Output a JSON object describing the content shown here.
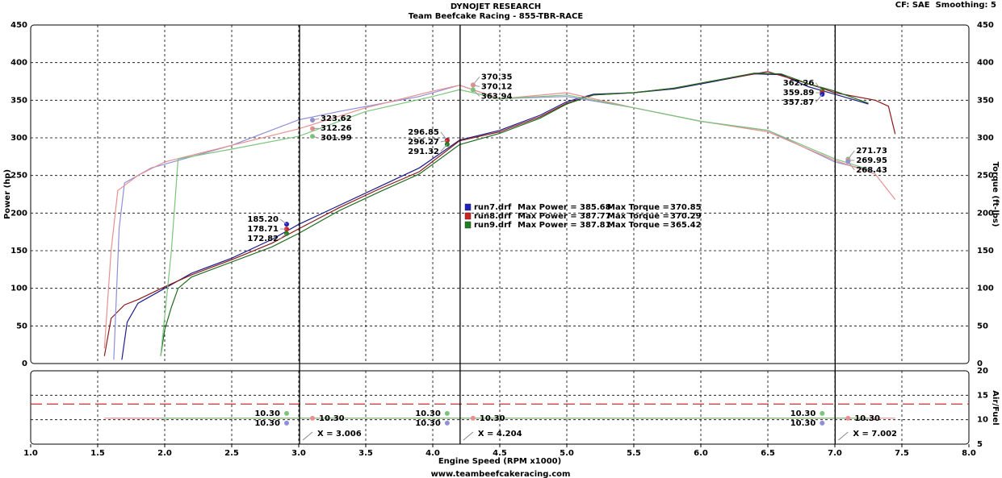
{
  "header": {
    "title": "DYNOJET RESEARCH",
    "subtitle": "Team Beefcake Racing - 855-TBR-RACE",
    "settings": "CF: SAE  Smoothing: 5"
  },
  "footer": "www.teambeefcakeracing.com",
  "chart_data": [
    {
      "type": "line",
      "xlabel": "Engine Speed (RPM x1000)",
      "ylabel": "Power (hp)",
      "y2label": "Torque (ft-lbs)",
      "xlim": [
        1,
        8
      ],
      "xticks": [
        {
          "value": 1,
          "label": "1.0"
        },
        {
          "value": 1.5,
          "label": "1.5"
        },
        {
          "value": 2,
          "label": "2.0"
        },
        {
          "value": 2.5,
          "label": "2.5"
        },
        {
          "value": 3,
          "label": "3.0"
        },
        {
          "value": 3.5,
          "label": "3.5"
        },
        {
          "value": 4,
          "label": "4.0"
        },
        {
          "value": 4.5,
          "label": "4.5"
        },
        {
          "value": 5,
          "label": "5.0"
        },
        {
          "value": 5.5,
          "label": "5.5"
        },
        {
          "value": 6,
          "label": "6.0"
        },
        {
          "value": 6.5,
          "label": "6.5"
        },
        {
          "value": 7,
          "label": "7.0"
        },
        {
          "value": 7.5,
          "label": "7.5"
        },
        {
          "value": 8,
          "label": "8.0"
        }
      ],
      "ylim": [
        0,
        450
      ],
      "yticks": [
        0,
        50,
        100,
        150,
        200,
        250,
        300,
        350,
        400,
        450
      ],
      "y2lim": [
        0,
        450
      ],
      "y2ticks": [
        0,
        50,
        100,
        150,
        200,
        250,
        300,
        350,
        400,
        450
      ],
      "grid": true,
      "series": [
        {
          "color": "#1c1c8c",
          "axis": "y",
          "x": [
            1.68,
            1.72,
            1.8,
            2.0,
            2.2,
            2.5,
            2.8,
            3.0,
            3.3,
            3.6,
            3.9,
            4.2,
            4.5,
            4.8,
            5.0,
            5.2,
            5.5,
            5.8,
            6.1,
            6.4,
            6.6,
            6.8,
            7.0,
            7.25
          ],
          "values": [
            5,
            55,
            80,
            100,
            120,
            140,
            165,
            185,
            210,
            235,
            260,
            297,
            310,
            330,
            348,
            358,
            360,
            365,
            375,
            385,
            384,
            368,
            358,
            345
          ]
        },
        {
          "color": "#8b1a1a",
          "axis": "y",
          "x": [
            1.55,
            1.6,
            1.7,
            1.8,
            2.0,
            2.2,
            2.5,
            2.8,
            3.0,
            3.3,
            3.6,
            3.9,
            4.2,
            4.5,
            4.8,
            5.0,
            5.2,
            5.5,
            5.8,
            6.1,
            6.5,
            6.8,
            7.0,
            7.3,
            7.4,
            7.45
          ],
          "values": [
            10,
            60,
            78,
            85,
            102,
            118,
            138,
            160,
            179,
            207,
            232,
            255,
            296,
            308,
            328,
            346,
            357,
            360,
            366,
            376,
            388,
            372,
            360,
            350,
            342,
            305
          ]
        },
        {
          "color": "#1e6b1e",
          "axis": "y",
          "x": [
            1.97,
            2.0,
            2.05,
            2.1,
            2.2,
            2.5,
            2.8,
            3.0,
            3.3,
            3.6,
            3.9,
            4.2,
            4.5,
            4.8,
            5.0,
            5.2,
            5.5,
            5.8,
            6.1,
            6.4,
            6.6,
            6.8,
            7.0,
            7.25
          ],
          "values": [
            10,
            45,
            75,
            100,
            115,
            135,
            155,
            173,
            203,
            228,
            252,
            291,
            306,
            326,
            345,
            357,
            360,
            366,
            376,
            386,
            385,
            372,
            362,
            346
          ]
        },
        {
          "color": "#8f8fd8",
          "axis": "y2",
          "x": [
            1.62,
            1.66,
            1.7,
            1.9,
            2.0,
            2.5,
            3.0,
            3.3,
            3.6,
            3.9,
            4.2,
            4.5,
            5.0,
            5.5,
            6.0,
            6.5,
            7.0,
            7.3
          ],
          "values": [
            5,
            180,
            240,
            260,
            265,
            290,
            324,
            335,
            345,
            355,
            370,
            352,
            355,
            340,
            322,
            310,
            268,
            255
          ]
        },
        {
          "color": "#e89090",
          "axis": "y2",
          "x": [
            1.55,
            1.6,
            1.65,
            1.8,
            2.0,
            2.5,
            3.0,
            3.5,
            4.0,
            4.2,
            4.5,
            5.0,
            5.5,
            6.0,
            6.5,
            7.0,
            7.3,
            7.45
          ],
          "values": [
            20,
            150,
            230,
            250,
            268,
            290,
            312,
            340,
            362,
            370,
            352,
            360,
            340,
            322,
            308,
            270,
            252,
            218
          ]
        },
        {
          "color": "#7cc47c",
          "axis": "y2",
          "x": [
            1.97,
            2.05,
            2.1,
            2.5,
            3.0,
            3.5,
            4.0,
            4.2,
            4.5,
            5.0,
            5.5,
            6.0,
            6.5,
            7.0,
            7.25
          ],
          "values": [
            10,
            150,
            272,
            285,
            302,
            335,
            355,
            364,
            352,
            357,
            340,
            322,
            310,
            272,
            258
          ]
        }
      ],
      "cursors": [
        {
          "x": 3.006,
          "label": "X = 3.006"
        },
        {
          "x": 4.204,
          "label": "X = 4.204"
        },
        {
          "x": 7.002,
          "label": "X = 7.002"
        }
      ],
      "readouts": [
        {
          "x": 3.006,
          "axis": "y",
          "value": 185.2,
          "label": "185.20",
          "color": "#2020c0"
        },
        {
          "x": 3.006,
          "axis": "y",
          "value": 178.71,
          "label": "178.71",
          "color": "#d02020"
        },
        {
          "x": 3.006,
          "axis": "y",
          "value": 172.82,
          "label": "172.82",
          "color": "#208020"
        },
        {
          "x": 3.006,
          "axis": "y2",
          "value": 323.62,
          "label": "323.62",
          "color": "#8f8fd8"
        },
        {
          "x": 3.006,
          "axis": "y2",
          "value": 312.26,
          "label": "312.26",
          "color": "#e89090"
        },
        {
          "x": 3.006,
          "axis": "y2",
          "value": 301.99,
          "label": "301.99",
          "color": "#7cc47c"
        },
        {
          "x": 4.204,
          "axis": "y",
          "value": 296.85,
          "label": "296.85",
          "color": "#2020c0"
        },
        {
          "x": 4.204,
          "axis": "y",
          "value": 296.27,
          "label": "296.27",
          "color": "#d02020"
        },
        {
          "x": 4.204,
          "axis": "y",
          "value": 291.32,
          "label": "291.32",
          "color": "#208020"
        },
        {
          "x": 4.204,
          "axis": "y2",
          "value": 370.35,
          "label": "370.35",
          "color": "#8f8fd8"
        },
        {
          "x": 4.204,
          "axis": "y2",
          "value": 370.12,
          "label": "370.12",
          "color": "#e89090"
        },
        {
          "x": 4.204,
          "axis": "y2",
          "value": 363.94,
          "label": "363.94",
          "color": "#7cc47c"
        },
        {
          "x": 7.002,
          "axis": "y",
          "value": 357.87,
          "label": "357.87",
          "color": "#2020c0"
        },
        {
          "x": 7.002,
          "axis": "y",
          "value": 359.89,
          "label": "359.89",
          "color": "#d02020"
        },
        {
          "x": 7.002,
          "axis": "y",
          "value": 362.26,
          "label": "362.26",
          "color": "#208020"
        },
        {
          "x": 7.002,
          "axis": "y2",
          "value": 268.43,
          "label": "268.43",
          "color": "#8f8fd8"
        },
        {
          "x": 7.002,
          "axis": "y2",
          "value": 269.95,
          "label": "269.95",
          "color": "#e89090"
        },
        {
          "x": 7.002,
          "axis": "y2",
          "value": 271.73,
          "label": "271.73",
          "color": "#7cc47c"
        }
      ],
      "legend": {
        "power_text": "Max Power =",
        "torque_text": "Max Torque =",
        "entries": [
          {
            "name": "run7.drf",
            "color": "#2020c0",
            "max_power": 385.68,
            "max_torque": 370.85
          },
          {
            "name": "run8.drf",
            "color": "#d02020",
            "max_power": 387.77,
            "max_torque": 370.29
          },
          {
            "name": "run9.drf",
            "color": "#208020",
            "max_power": 387.81,
            "max_torque": 365.42
          }
        ]
      }
    },
    {
      "type": "line",
      "ylabel": "Air/Fuel",
      "xlim": [
        1,
        8
      ],
      "ylim": [
        5,
        20
      ],
      "yticks": [
        5,
        10,
        15,
        20
      ],
      "grid": true,
      "reference_line": {
        "value": 13.2,
        "color": "#c03030"
      },
      "series": [
        {
          "color": "#8f8fd8",
          "x": [
            1.6,
            7.3
          ],
          "values": [
            10.3,
            10.3
          ]
        },
        {
          "color": "#e89090",
          "x": [
            1.55,
            7.45
          ],
          "values": [
            10.3,
            10.3
          ]
        },
        {
          "color": "#7cc47c",
          "x": [
            1.97,
            7.25
          ],
          "values": [
            10.3,
            10.3
          ]
        }
      ],
      "readouts": [
        {
          "x": 3.006,
          "value": 10.3,
          "label": "10.30",
          "color": "#7cc47c"
        },
        {
          "x": 3.006,
          "value": 10.3,
          "label": "10.30",
          "color": "#8f8fd8"
        },
        {
          "x": 3.006,
          "value": 10.3,
          "label": "10.30",
          "color": "#e89090"
        },
        {
          "x": 4.204,
          "value": 10.3,
          "label": "10.30",
          "color": "#7cc47c"
        },
        {
          "x": 4.204,
          "value": 10.3,
          "label": "10.30",
          "color": "#8f8fd8"
        },
        {
          "x": 4.204,
          "value": 10.3,
          "label": "10.30",
          "color": "#e89090"
        },
        {
          "x": 7.002,
          "value": 10.3,
          "label": "10.30",
          "color": "#7cc47c"
        },
        {
          "x": 7.002,
          "value": 10.3,
          "label": "10.30",
          "color": "#8f8fd8"
        },
        {
          "x": 7.002,
          "value": 10.3,
          "label": "10.30",
          "color": "#e89090"
        }
      ]
    }
  ]
}
